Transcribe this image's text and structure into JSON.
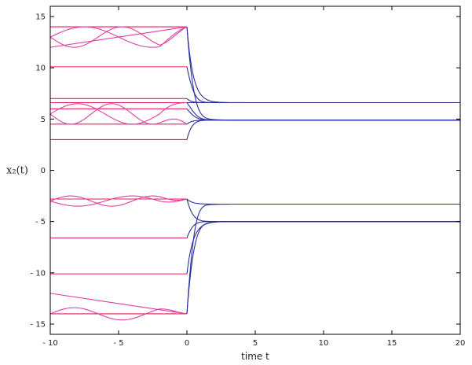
{
  "chart_data": {
    "type": "line",
    "xlabel": "time t",
    "ylabel": "x₂(t)",
    "xlim": [
      -10,
      20
    ],
    "ylim": [
      -16,
      16
    ],
    "xticks": [
      -10,
      -5,
      0,
      5,
      10,
      15,
      20
    ],
    "yticks": [
      -15,
      -10,
      -5,
      0,
      5,
      10,
      15
    ],
    "grid": false,
    "colors": {
      "history": "#e0215a",
      "wavy": "#e040a0",
      "solution": "#2a2f9a",
      "axes": "#000000"
    },
    "history_constant": [
      14,
      10.1,
      7.0,
      6.6,
      6.0,
      4.5,
      3.0,
      -2.8,
      -6.6,
      -10.1,
      -14.0
    ],
    "history_linear": [
      {
        "x": [
          -10,
          0
        ],
        "y": [
          12.0,
          14.0
        ]
      },
      {
        "x": [
          -10,
          0
        ],
        "y": [
          -12.0,
          -14.0
        ]
      }
    ],
    "history_wavy": [
      {
        "base": 13.0,
        "amp": 1.0,
        "period": 10,
        "end": 14.0
      },
      {
        "base": 13.0,
        "amp": -1.0,
        "period": 7,
        "end": 14.0
      },
      {
        "base": 5.5,
        "amp": 1.0,
        "period": 8,
        "end": 6.6
      },
      {
        "base": 5.5,
        "amp": -1.0,
        "period": 6,
        "end": 4.5
      },
      {
        "base": -3.0,
        "amp": 0.5,
        "period": 6,
        "end": -2.8
      },
      {
        "base": -3.0,
        "amp": -0.5,
        "period": 8,
        "end": -2.8
      },
      {
        "base": -14.0,
        "amp": 0.6,
        "period": 7,
        "end": -14.0
      }
    ],
    "attractors": [
      6.6,
      4.9,
      -3.3,
      -5.0
    ],
    "solution_starts": [
      {
        "y0": 14.0,
        "target": 6.6
      },
      {
        "y0": 14.0,
        "target": 4.9
      },
      {
        "y0": 10.1,
        "target": 6.6
      },
      {
        "y0": 7.0,
        "target": 6.6
      },
      {
        "y0": 6.6,
        "target": 6.6
      },
      {
        "y0": 6.0,
        "target": 4.9
      },
      {
        "y0": 4.5,
        "target": 4.9
      },
      {
        "y0": 3.0,
        "target": 4.9
      },
      {
        "y0": 6.6,
        "target": 4.9
      },
      {
        "y0": -2.8,
        "target": -3.3
      },
      {
        "y0": -2.8,
        "target": -5.0
      },
      {
        "y0": -6.6,
        "target": -5.0
      },
      {
        "y0": -10.1,
        "target": -5.0
      },
      {
        "y0": -14.0,
        "target": -5.0
      },
      {
        "y0": -14.0,
        "target": -3.3
      }
    ]
  }
}
